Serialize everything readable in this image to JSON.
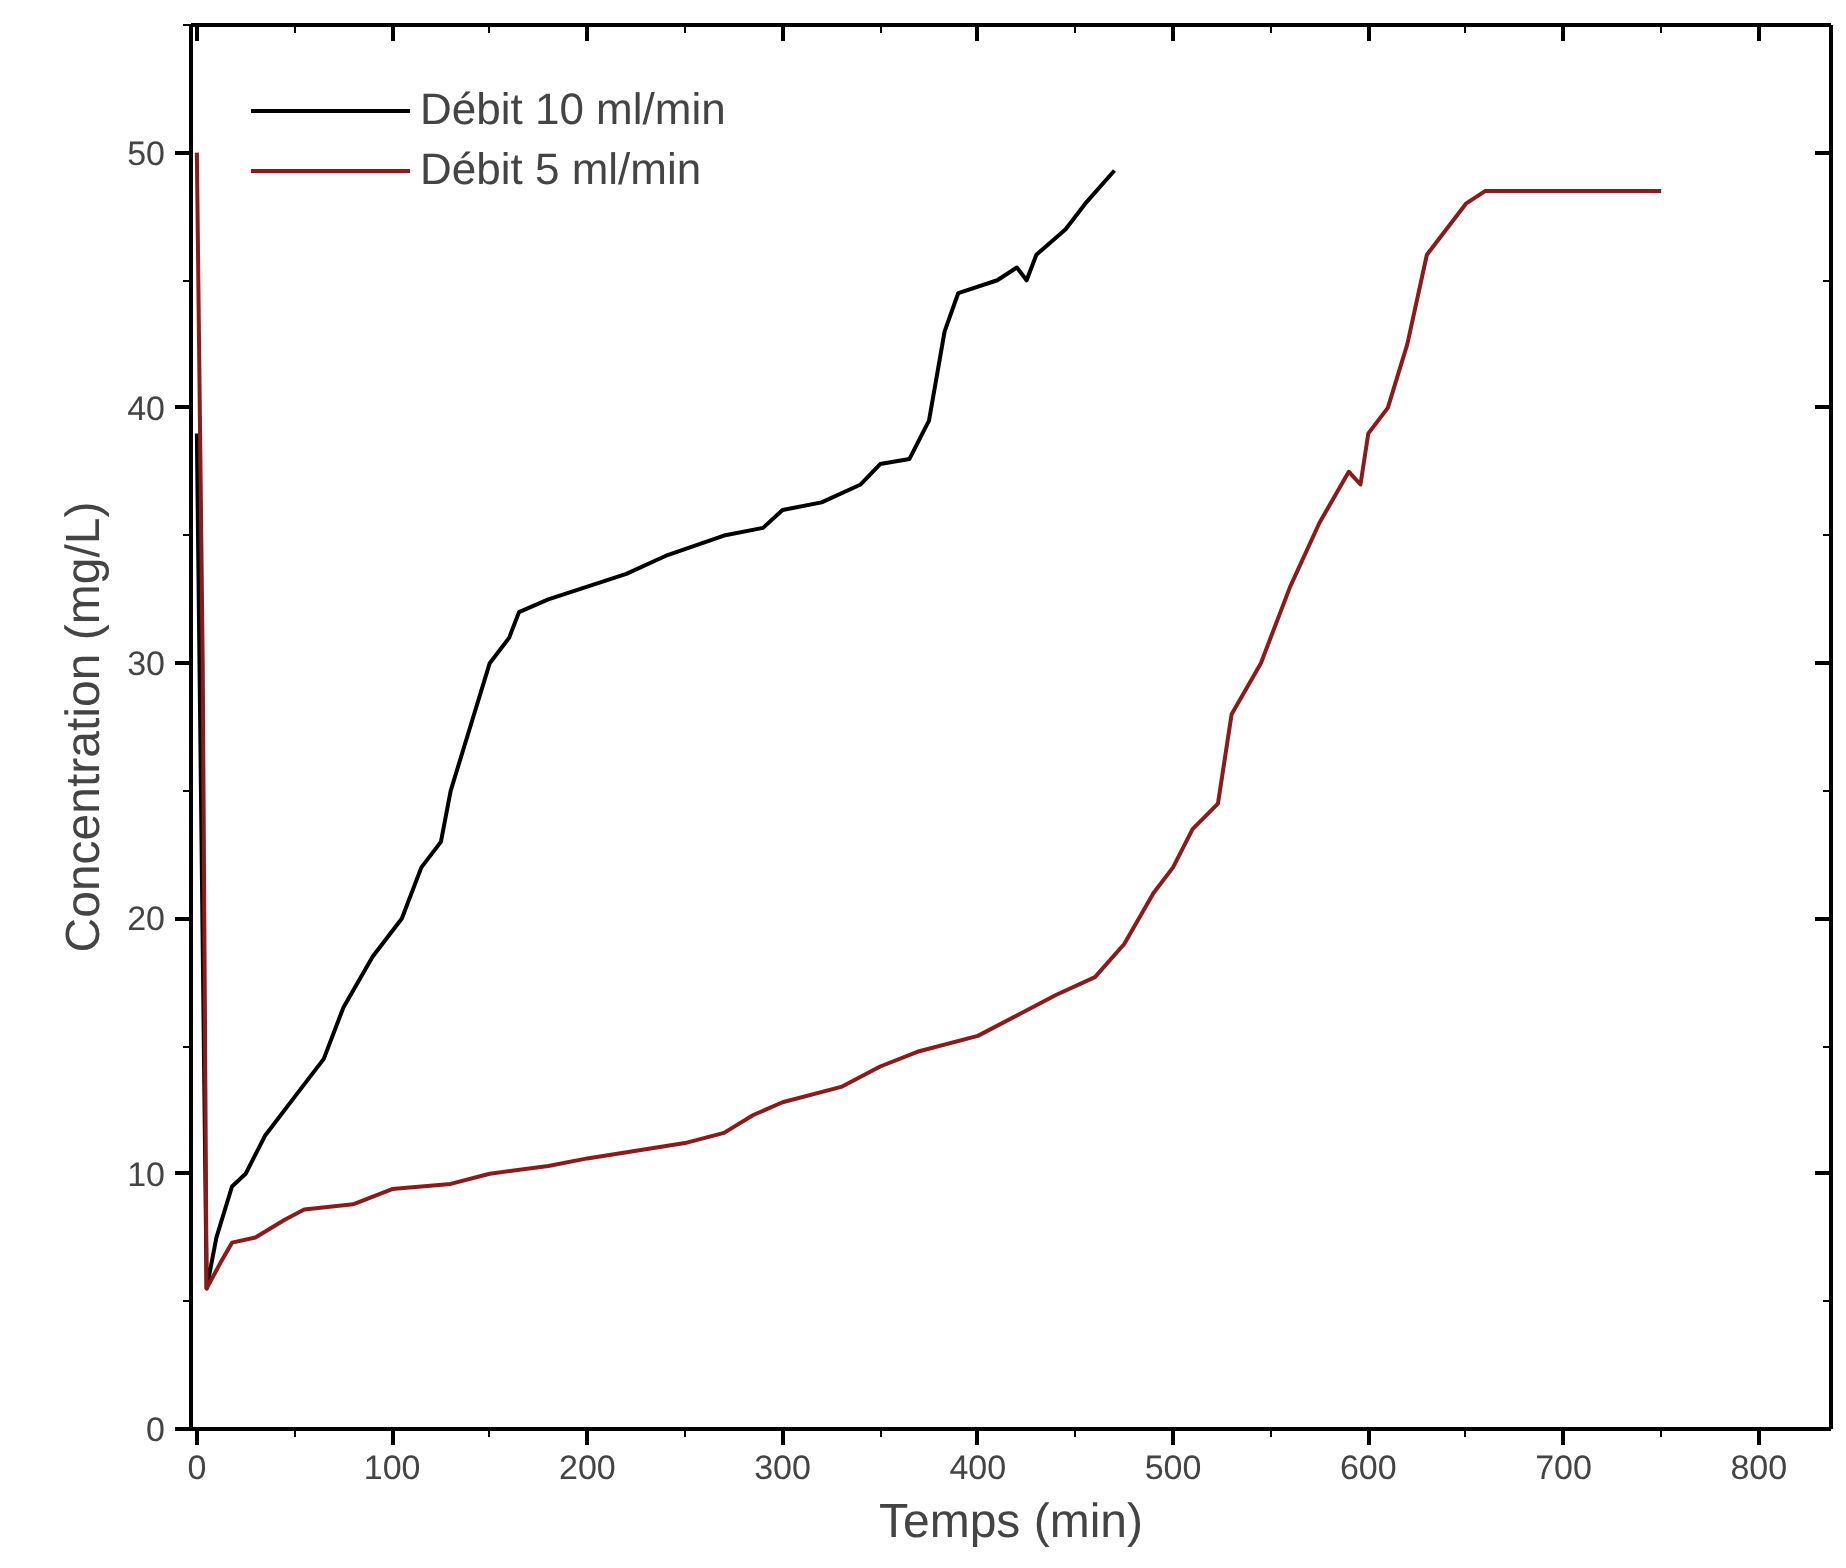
{
  "chart_data": {
    "type": "line",
    "xlabel": "Temps (min)",
    "ylabel": "Concentration (mg/L)",
    "xlim": [
      -3,
      837
    ],
    "ylim": [
      0,
      55
    ],
    "xticks": [
      0,
      100,
      200,
      300,
      400,
      500,
      600,
      700,
      800
    ],
    "yticks": [
      0,
      10,
      20,
      30,
      40,
      50
    ],
    "grid": false,
    "legend": "top left",
    "line_style": "solid",
    "series": [
      {
        "name": "Débit 10 ml/min",
        "color": "#000000",
        "x": [
          0,
          5,
          10,
          18,
          25,
          35,
          50,
          65,
          75,
          90,
          105,
          115,
          125,
          130,
          140,
          150,
          160,
          165,
          180,
          200,
          220,
          240,
          270,
          290,
          300,
          320,
          340,
          350,
          365,
          375,
          383,
          390,
          410,
          420,
          425,
          430,
          445,
          455,
          470
        ],
        "values": [
          39,
          5.5,
          7.5,
          9.5,
          10,
          11.5,
          13,
          14.5,
          16.5,
          18.5,
          20,
          22,
          23,
          25,
          27.5,
          30,
          31,
          32,
          32.5,
          33,
          33.5,
          34.2,
          35,
          35.3,
          36,
          36.3,
          37,
          37.8,
          38,
          39.5,
          43,
          44.5,
          45,
          45.5,
          45,
          46,
          47,
          48,
          49.3
        ]
      },
      {
        "name": "Débit 5 ml/min",
        "color": "#8b1a1a",
        "x": [
          0,
          3,
          5,
          12,
          18,
          30,
          45,
          55,
          80,
          100,
          130,
          150,
          180,
          200,
          250,
          270,
          285,
          300,
          330,
          350,
          370,
          400,
          420,
          440,
          460,
          475,
          490,
          500,
          510,
          523,
          530,
          545,
          560,
          575,
          590,
          596,
          600,
          610,
          620,
          630,
          640,
          650,
          660,
          750
        ],
        "values": [
          50,
          30,
          5.5,
          6.5,
          7.3,
          7.5,
          8.2,
          8.6,
          8.8,
          9.4,
          9.6,
          10,
          10.3,
          10.6,
          11.2,
          11.6,
          12.3,
          12.8,
          13.4,
          14.2,
          14.8,
          15.4,
          16.2,
          17,
          17.7,
          19,
          21,
          22,
          23.5,
          24.5,
          28,
          30,
          33,
          35.5,
          37.5,
          37,
          39,
          40,
          42.5,
          46,
          47,
          48,
          48.5,
          48.5
        ]
      }
    ]
  }
}
